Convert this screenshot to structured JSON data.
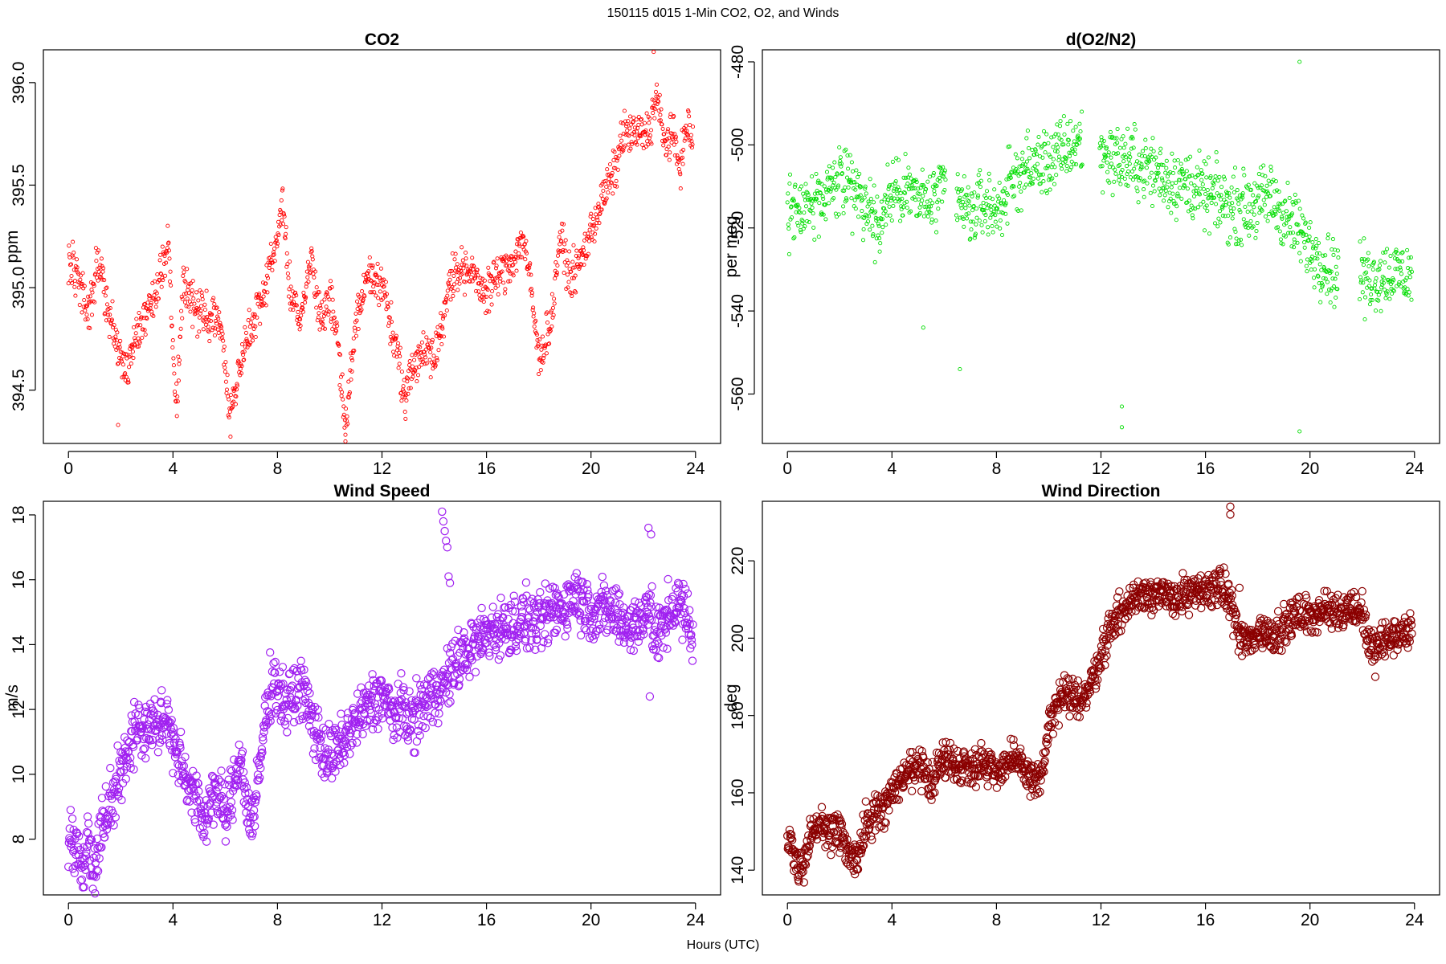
{
  "title": "150115   d015   1-Min CO2, O2, and Winds",
  "xlabel": "Hours (UTC)",
  "chart_data": [
    {
      "type": "scatter",
      "title": "CO2",
      "ylabel": "ppm",
      "xlabel": "",
      "color": "#ff0000",
      "xlim": [
        -0.96,
        24.96
      ],
      "ylim": [
        394.24,
        396.16
      ],
      "xticks": [
        0,
        4,
        8,
        12,
        16,
        20,
        24
      ],
      "yticks": [
        394.5,
        395.0,
        395.5,
        396.0
      ],
      "ytick_labels": [
        "394.5",
        "395.0",
        "395.5",
        "396.0"
      ],
      "marker_size": "small",
      "anchors": [
        [
          0.0,
          395.15
        ],
        [
          0.3,
          395.05
        ],
        [
          0.55,
          394.97
        ],
        [
          0.8,
          394.85
        ],
        [
          1.1,
          395.12
        ],
        [
          1.9,
          394.7
        ],
        [
          2.2,
          394.6
        ],
        [
          2.5,
          394.75
        ],
        [
          2.9,
          394.85
        ],
        [
          3.3,
          394.95
        ],
        [
          3.6,
          395.12
        ],
        [
          3.85,
          395.2
        ],
        [
          4.05,
          394.55
        ],
        [
          4.15,
          394.45
        ],
        [
          4.4,
          395.05
        ],
        [
          4.7,
          394.93
        ],
        [
          5.0,
          394.88
        ],
        [
          5.5,
          394.85
        ],
        [
          5.8,
          394.85
        ],
        [
          6.05,
          394.55
        ],
        [
          6.2,
          394.38
        ],
        [
          6.7,
          394.7
        ],
        [
          7.1,
          394.85
        ],
        [
          7.4,
          394.95
        ],
        [
          7.9,
          395.2
        ],
        [
          8.2,
          395.4
        ],
        [
          8.5,
          394.95
        ],
        [
          8.9,
          394.85
        ],
        [
          9.3,
          395.15
        ],
        [
          9.6,
          394.85
        ],
        [
          10.0,
          394.95
        ],
        [
          10.3,
          394.75
        ],
        [
          10.6,
          394.3
        ],
        [
          11.0,
          394.85
        ],
        [
          11.5,
          395.05
        ],
        [
          12.1,
          395.0
        ],
        [
          12.3,
          394.85
        ],
        [
          12.6,
          394.65
        ],
        [
          12.9,
          394.45
        ],
        [
          13.1,
          394.6
        ],
        [
          13.5,
          394.68
        ],
        [
          14.0,
          394.7
        ],
        [
          14.3,
          394.78
        ],
        [
          14.6,
          395.05
        ],
        [
          15.0,
          395.1
        ],
        [
          15.5,
          395.05
        ],
        [
          15.9,
          394.98
        ],
        [
          16.4,
          395.05
        ],
        [
          16.8,
          395.1
        ],
        [
          17.1,
          395.15
        ],
        [
          17.4,
          395.25
        ],
        [
          17.7,
          395.0
        ],
        [
          18.0,
          394.65
        ],
        [
          18.5,
          394.85
        ],
        [
          18.8,
          395.25
        ],
        [
          19.2,
          395.05
        ],
        [
          19.5,
          395.1
        ],
        [
          19.8,
          395.2
        ],
        [
          20.2,
          395.35
        ],
        [
          20.6,
          395.48
        ],
        [
          21.0,
          395.6
        ],
        [
          21.2,
          395.75
        ],
        [
          22.1,
          395.75
        ],
        [
          22.3,
          395.8
        ],
        [
          22.5,
          395.95
        ],
        [
          22.8,
          395.7
        ],
        [
          23.1,
          395.75
        ],
        [
          23.4,
          395.6
        ],
        [
          23.7,
          395.8
        ],
        [
          23.9,
          395.7
        ]
      ],
      "noise": 0.05,
      "outliers": [
        [
          22.4,
          396.15
        ],
        [
          1.9,
          394.33
        ],
        [
          10.6,
          394.25
        ],
        [
          12.9,
          394.36
        ]
      ]
    },
    {
      "type": "scatter",
      "title": "d(O2/N2)",
      "ylabel": "per meg",
      "xlabel": "",
      "color": "#00dd00",
      "xlim": [
        -0.96,
        24.96
      ],
      "ylim": [
        -571.9,
        -477.1
      ],
      "xticks": [
        0,
        4,
        8,
        12,
        16,
        20,
        24
      ],
      "yticks": [
        -560,
        -540,
        -520,
        -500,
        -480
      ],
      "ytick_labels": [
        "-560",
        "-540",
        "-520",
        "-500",
        "-480"
      ],
      "marker_size": "small",
      "anchors": [
        [
          0.0,
          -516
        ],
        [
          1.0,
          -514
        ],
        [
          2.0,
          -508
        ],
        [
          2.5,
          -511
        ],
        [
          3.0,
          -515
        ],
        [
          3.5,
          -519
        ],
        [
          4.0,
          -512
        ],
        [
          4.5,
          -510
        ],
        [
          5.0,
          -513
        ],
        [
          5.5,
          -514
        ],
        [
          6.0,
          -511
        ],
        [
          6.5,
          -513
        ],
        [
          7.0,
          -517
        ],
        [
          7.5,
          -514
        ],
        [
          8.0,
          -516
        ],
        [
          8.5,
          -510
        ],
        [
          9.0,
          -506
        ],
        [
          9.5,
          -505
        ],
        [
          10.0,
          -504
        ],
        [
          10.5,
          -502
        ],
        [
          11.0,
          -500
        ],
        [
          11.2,
          -499
        ],
        [
          12.0,
          -502
        ],
        [
          12.5,
          -503
        ],
        [
          13.0,
          -504
        ],
        [
          13.5,
          -505
        ],
        [
          14.0,
          -506
        ],
        [
          14.5,
          -508
        ],
        [
          15.0,
          -509
        ],
        [
          15.5,
          -510
        ],
        [
          16.0,
          -512
        ],
        [
          16.5,
          -513
        ],
        [
          17.0,
          -515
        ],
        [
          17.5,
          -515
        ],
        [
          18.0,
          -514
        ],
        [
          18.5,
          -512
        ],
        [
          19.0,
          -517
        ],
        [
          19.5,
          -520
        ],
        [
          20.0,
          -525
        ],
        [
          20.5,
          -528
        ],
        [
          21.0,
          -531
        ],
        [
          22.0,
          -531
        ],
        [
          22.5,
          -532
        ],
        [
          23.0,
          -531
        ],
        [
          23.5,
          -531
        ],
        [
          23.9,
          -532
        ]
      ],
      "noise": 4,
      "gaps": [
        [
          6.05,
          6.45
        ],
        [
          11.3,
          11.95
        ],
        [
          21.1,
          21.9
        ]
      ],
      "outliers": [
        [
          19.6,
          -480
        ],
        [
          12.8,
          -563
        ],
        [
          12.8,
          -568
        ],
        [
          19.6,
          -569
        ],
        [
          6.6,
          -554
        ],
        [
          5.2,
          -544
        ],
        [
          22.1,
          -542
        ]
      ]
    },
    {
      "type": "scatter",
      "title": "Wind Speed",
      "ylabel": "m/s",
      "xlabel": "",
      "color": "#a020f0",
      "xlim": [
        -0.96,
        24.96
      ],
      "ylim": [
        6.28,
        18.42
      ],
      "xticks": [
        0,
        4,
        8,
        12,
        16,
        20,
        24
      ],
      "yticks": [
        8,
        10,
        12,
        14,
        16,
        18
      ],
      "ytick_labels": [
        "8",
        "10",
        "12",
        "14",
        "16",
        "18"
      ],
      "marker_size": "large",
      "anchors": [
        [
          0.0,
          7.8
        ],
        [
          0.3,
          8.0
        ],
        [
          0.5,
          7.0
        ],
        [
          0.7,
          8.2
        ],
        [
          0.9,
          7.1
        ],
        [
          1.1,
          7.5
        ],
        [
          1.3,
          8.5
        ],
        [
          1.6,
          9.3
        ],
        [
          2.0,
          10.0
        ],
        [
          2.3,
          10.8
        ],
        [
          2.6,
          11.6
        ],
        [
          3.0,
          11.2
        ],
        [
          3.3,
          11.8
        ],
        [
          3.5,
          11.3
        ],
        [
          3.8,
          11.8
        ],
        [
          4.1,
          10.8
        ],
        [
          4.4,
          10.2
        ],
        [
          4.7,
          9.5
        ],
        [
          5.0,
          9.0
        ],
        [
          5.2,
          8.4
        ],
        [
          5.5,
          9.6
        ],
        [
          5.8,
          9.2
        ],
        [
          6.0,
          8.6
        ],
        [
          6.3,
          9.5
        ],
        [
          6.6,
          10.8
        ],
        [
          6.8,
          9.0
        ],
        [
          7.1,
          8.6
        ],
        [
          7.5,
          11.5
        ],
        [
          7.8,
          13.0
        ],
        [
          8.1,
          12.5
        ],
        [
          8.3,
          12.1
        ],
        [
          8.6,
          12.4
        ],
        [
          8.9,
          12.8
        ],
        [
          9.2,
          12.0
        ],
        [
          9.5,
          11.2
        ],
        [
          9.8,
          10.7
        ],
        [
          10.0,
          10.5
        ],
        [
          10.4,
          10.8
        ],
        [
          10.8,
          11.4
        ],
        [
          11.2,
          11.8
        ],
        [
          11.6,
          12.2
        ],
        [
          12.0,
          12.5
        ],
        [
          12.4,
          11.8
        ],
        [
          12.8,
          12.0
        ],
        [
          13.2,
          11.6
        ],
        [
          13.6,
          12.2
        ],
        [
          14.0,
          12.5
        ],
        [
          14.5,
          12.9
        ],
        [
          14.9,
          13.5
        ],
        [
          15.3,
          13.8
        ],
        [
          15.8,
          14.2
        ],
        [
          16.2,
          14.5
        ],
        [
          16.6,
          14.5
        ],
        [
          17.0,
          14.6
        ],
        [
          17.5,
          14.8
        ],
        [
          18.0,
          14.6
        ],
        [
          18.5,
          15.0
        ],
        [
          19.0,
          15.2
        ],
        [
          19.4,
          15.6
        ],
        [
          19.8,
          15.2
        ],
        [
          20.2,
          15.0
        ],
        [
          20.6,
          15.1
        ],
        [
          21.0,
          14.9
        ],
        [
          21.4,
          14.6
        ],
        [
          21.8,
          14.6
        ],
        [
          22.2,
          15.4
        ],
        [
          22.4,
          14.2
        ],
        [
          22.7,
          14.4
        ],
        [
          23.0,
          15.0
        ],
        [
          23.3,
          15.3
        ],
        [
          23.6,
          14.9
        ],
        [
          23.9,
          14.3
        ]
      ],
      "noise": 0.45,
      "outliers": [
        [
          14.3,
          18.1
        ],
        [
          14.35,
          17.8
        ],
        [
          14.4,
          17.5
        ],
        [
          14.45,
          17.2
        ],
        [
          14.5,
          17.0
        ],
        [
          14.55,
          16.1
        ],
        [
          14.6,
          15.9
        ],
        [
          22.2,
          17.6
        ],
        [
          22.3,
          17.4
        ],
        [
          22.25,
          12.4
        ]
      ]
    },
    {
      "type": "scatter",
      "title": "Wind Direction",
      "ylabel": "deg",
      "xlabel": "",
      "color": "#8b0000",
      "xlim": [
        -0.96,
        24.96
      ],
      "ylim": [
        133.6,
        235.4
      ],
      "xticks": [
        0,
        4,
        8,
        12,
        16,
        20,
        24
      ],
      "yticks": [
        140,
        160,
        180,
        200,
        220
      ],
      "ytick_labels": [
        "140",
        "160",
        "180",
        "200",
        "220"
      ],
      "marker_size": "large",
      "anchors": [
        [
          0.0,
          147
        ],
        [
          0.2,
          146
        ],
        [
          0.4,
          139
        ],
        [
          0.6,
          141
        ],
        [
          0.9,
          150
        ],
        [
          1.3,
          151
        ],
        [
          1.8,
          150
        ],
        [
          2.1,
          149
        ],
        [
          2.3,
          144
        ],
        [
          2.7,
          143
        ],
        [
          3.0,
          152
        ],
        [
          3.5,
          155
        ],
        [
          4.0,
          160
        ],
        [
          4.5,
          165
        ],
        [
          5.0,
          166
        ],
        [
          5.5,
          163
        ],
        [
          6.0,
          169
        ],
        [
          6.5,
          167
        ],
        [
          7.0,
          167
        ],
        [
          7.5,
          168
        ],
        [
          8.0,
          166
        ],
        [
          8.5,
          168
        ],
        [
          9.0,
          167
        ],
        [
          9.3,
          164
        ],
        [
          9.7,
          163
        ],
        [
          10.0,
          177
        ],
        [
          10.5,
          185
        ],
        [
          11.0,
          184
        ],
        [
          11.5,
          186
        ],
        [
          12.0,
          196
        ],
        [
          12.5,
          205
        ],
        [
          13.0,
          208
        ],
        [
          13.5,
          212
        ],
        [
          14.0,
          212
        ],
        [
          14.5,
          210
        ],
        [
          15.0,
          211
        ],
        [
          15.5,
          211
        ],
        [
          16.0,
          212
        ],
        [
          16.5,
          214
        ],
        [
          17.0,
          209
        ],
        [
          17.3,
          200
        ],
        [
          17.7,
          199
        ],
        [
          18.0,
          202
        ],
        [
          18.5,
          201
        ],
        [
          19.0,
          203
        ],
        [
          19.5,
          206
        ],
        [
          20.0,
          206
        ],
        [
          20.5,
          207
        ],
        [
          21.0,
          207
        ],
        [
          21.5,
          208
        ],
        [
          22.0,
          207
        ],
        [
          22.3,
          197
        ],
        [
          22.6,
          198
        ],
        [
          23.0,
          200
        ],
        [
          23.5,
          201
        ],
        [
          23.9,
          202
        ]
      ],
      "noise": 2.4,
      "outliers": [
        [
          16.95,
          234
        ],
        [
          16.95,
          232
        ],
        [
          17.3,
          213
        ],
        [
          22.5,
          190
        ]
      ]
    }
  ]
}
